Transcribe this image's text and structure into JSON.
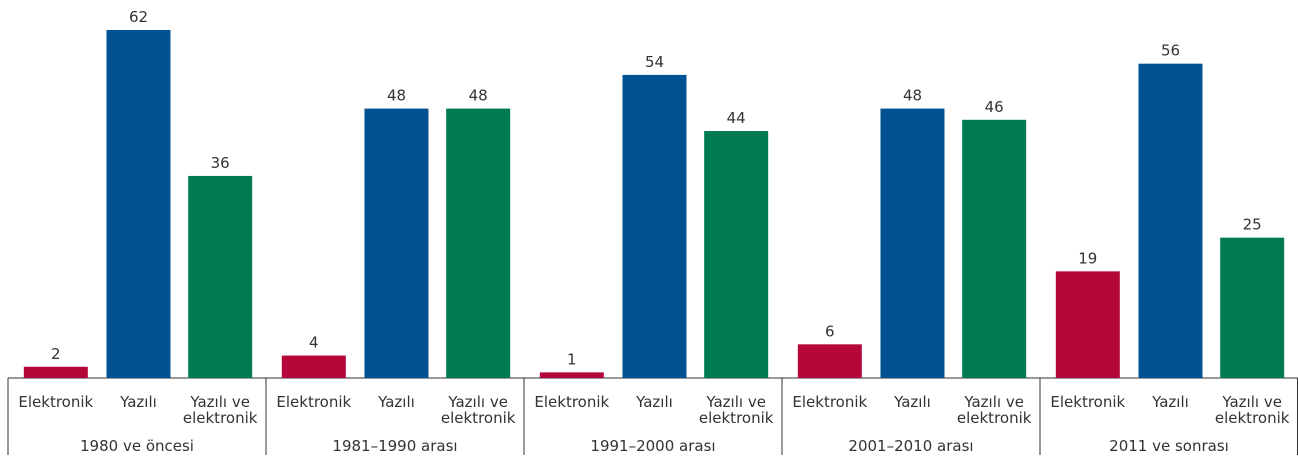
{
  "chart_data": {
    "type": "bar",
    "categories": [
      "1980 ve öncesi",
      "1981–1990 arası",
      "1991–2000 arası",
      "2001–2010 arası",
      "2011 ve sonrası"
    ],
    "series": [
      {
        "name": "Elektronik",
        "color": "#b5073a",
        "values": [
          2,
          4,
          1,
          6,
          19
        ]
      },
      {
        "name": "Yazılı",
        "color": "#005293",
        "values": [
          62,
          48,
          54,
          48,
          56
        ]
      },
      {
        "name": "Yazılı ve elektronik",
        "color": "#007a4f",
        "values": [
          36,
          48,
          44,
          46,
          25
        ]
      }
    ]
  }
}
